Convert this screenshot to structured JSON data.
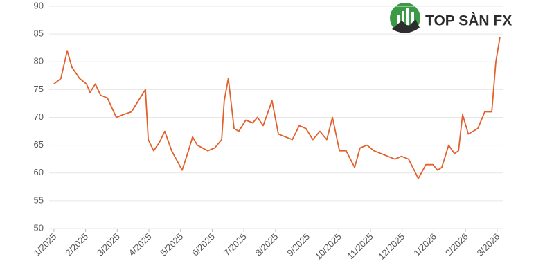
{
  "logo": "TOP SÀN FX",
  "chart_data": {
    "type": "line",
    "color": "#e2602c",
    "grid": true,
    "xlim": [
      -0.15,
      14.2
    ],
    "xticks": [
      {
        "value": 0,
        "label": "1/2025"
      },
      {
        "value": 1,
        "label": "2/2025"
      },
      {
        "value": 2,
        "label": "3/2025"
      },
      {
        "value": 3,
        "label": "4/2025"
      },
      {
        "value": 4,
        "label": "5/2025"
      },
      {
        "value": 5,
        "label": "6/2025"
      },
      {
        "value": 6,
        "label": "7/2025"
      },
      {
        "value": 7,
        "label": "8/2025"
      },
      {
        "value": 8,
        "label": "9/2025"
      },
      {
        "value": 9,
        "label": "10/2025"
      },
      {
        "value": 10,
        "label": "11/2025"
      },
      {
        "value": 11,
        "label": "12/2025"
      },
      {
        "value": 12,
        "label": "1/2026"
      },
      {
        "value": 13,
        "label": "2/2026"
      },
      {
        "value": 14,
        "label": "3/2026"
      }
    ],
    "ylim": [
      50,
      90
    ],
    "yticks": [
      50,
      55,
      60,
      65,
      70,
      75,
      80,
      85,
      90
    ],
    "x": [
      0,
      0.22,
      0.42,
      0.57,
      0.81,
      1.03,
      1.14,
      1.31,
      1.47,
      1.69,
      1.97,
      2.19,
      2.45,
      2.67,
      2.89,
      2.98,
      3.15,
      3.33,
      3.5,
      3.72,
      4.05,
      4.25,
      4.38,
      4.53,
      4.86,
      5.08,
      5.3,
      5.38,
      5.51,
      5.69,
      5.84,
      6.06,
      6.28,
      6.43,
      6.61,
      6.89,
      7.09,
      7.31,
      7.53,
      7.75,
      7.96,
      8.18,
      8.4,
      8.62,
      8.8,
      9.02,
      9.23,
      9.5,
      9.67,
      9.89,
      10.11,
      10.33,
      10.55,
      10.77,
      10.98,
      11.2,
      11.38,
      11.51,
      11.75,
      11.97,
      12.12,
      12.25,
      12.47,
      12.65,
      12.78,
      12.91,
      13.09,
      13.39,
      13.61,
      13.83,
      13.96,
      14.09
    ],
    "values": [
      76,
      77,
      82,
      79,
      77,
      76,
      74.5,
      76,
      74,
      73.5,
      70,
      70.5,
      71,
      73,
      75,
      66,
      64,
      65.5,
      67.5,
      64,
      60.5,
      64,
      66.5,
      65,
      64,
      64.5,
      66,
      73,
      77,
      68,
      67.5,
      69.5,
      69,
      70,
      68.5,
      73,
      67,
      66.5,
      66,
      68.5,
      68,
      66,
      67.5,
      66,
      70,
      64,
      64,
      61,
      64.5,
      65,
      64,
      63.5,
      63,
      62.5,
      63,
      62.5,
      60.5,
      59,
      61.5,
      61.5,
      60.5,
      61,
      65,
      63.5,
      64,
      70.5,
      67,
      68,
      71,
      71,
      80,
      84.5
    ]
  }
}
